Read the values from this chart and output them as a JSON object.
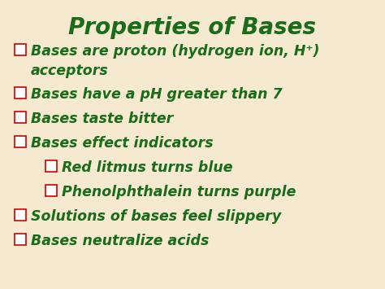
{
  "title": "Properties of Bases",
  "title_color": "#1a6b1a",
  "background_color": "#f5ead0",
  "text_color": "#1a6b1a",
  "checkbox_color": "#cc0000",
  "title_fontsize": 20,
  "body_fontsize": 12.5,
  "bullet_items": [
    {
      "text": "Bases are proton (hydrogen ion, H⁺)\nacceptors",
      "indent": 0
    },
    {
      "text": "Bases have a pH greater than 7",
      "indent": 0
    },
    {
      "text": "Bases taste bitter",
      "indent": 0
    },
    {
      "text": "Bases effect indicators",
      "indent": 0
    },
    {
      "text": "Red litmus turns blue",
      "indent": 1
    },
    {
      "text": "Phenolphthalein turns purple",
      "indent": 1
    },
    {
      "text": "Solutions of bases feel slippery",
      "indent": 0
    },
    {
      "text": "Bases neutralize acids",
      "indent": 0
    }
  ]
}
